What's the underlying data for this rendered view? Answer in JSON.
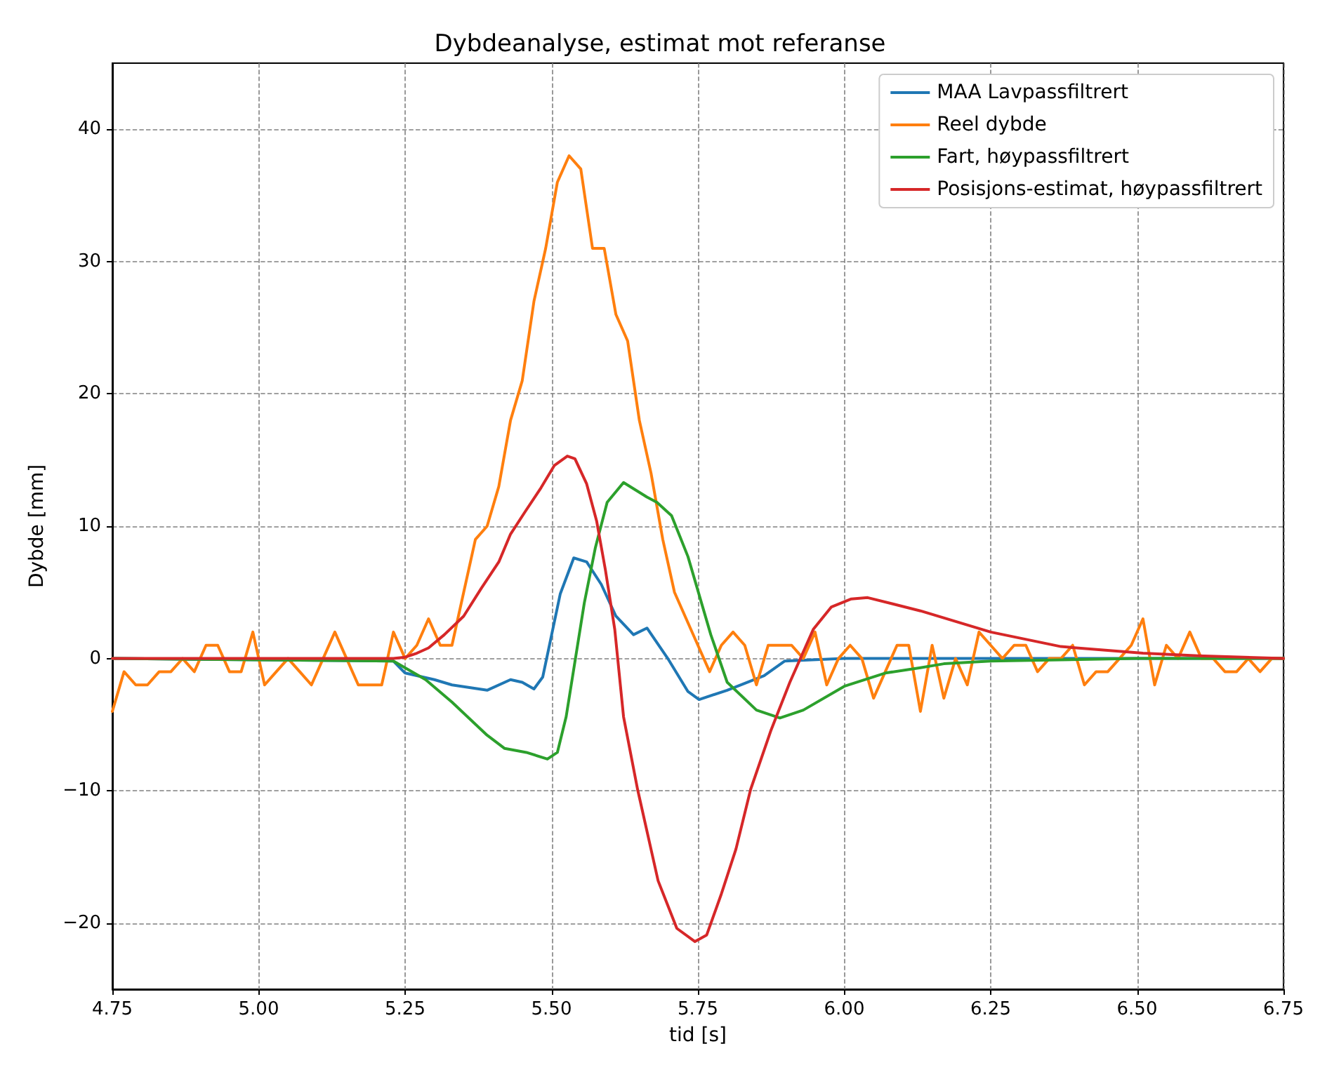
{
  "chart_data": {
    "type": "line",
    "title": "Dybdeanalyse, estimat mot referanse",
    "xlabel": "tid [s]",
    "ylabel": "Dybde [mm]",
    "xlim": [
      4.75,
      6.75
    ],
    "xticks": [
      4.75,
      {
        "value": 5,
        "label": "5.00"
      },
      5.25,
      {
        "value": 5.5,
        "label": "5.50"
      },
      5.75,
      {
        "value": 6,
        "label": "6.00"
      },
      6.25,
      {
        "value": 6.5,
        "label": "6.50"
      },
      6.75
    ],
    "ylim": [
      -25,
      45
    ],
    "yticks": [
      {
        "value": -20,
        "label": "−20"
      },
      {
        "value": -10,
        "label": "−10"
      },
      0,
      10,
      20,
      30,
      40
    ],
    "grid": true,
    "legend": "top right",
    "line_style": "solid",
    "series": [
      {
        "name": "MAA Lavpassfiltrert",
        "color": "#1f77b4",
        "x": [
          4.75,
          5.23,
          5.25,
          5.3,
          5.33,
          5.39,
          5.43,
          5.45,
          5.47,
          5.485,
          5.515,
          5.538,
          5.56,
          5.585,
          5.61,
          5.64,
          5.663,
          5.7,
          5.733,
          5.752,
          5.8,
          5.863,
          5.898,
          5.945,
          6.0,
          6.75
        ],
        "values": [
          0,
          -0.2,
          -1.1,
          -1.6,
          -2.0,
          -2.4,
          -1.6,
          -1.8,
          -2.3,
          -1.4,
          4.9,
          7.6,
          7.3,
          5.6,
          3.2,
          1.8,
          2.3,
          -0.1,
          -2.5,
          -3.1,
          -2.4,
          -1.3,
          -0.2,
          -0.1,
          0,
          0
        ]
      },
      {
        "name": "Reel dybde",
        "color": "#ff7f0e",
        "x": [
          4.75,
          4.77,
          4.79,
          4.81,
          4.83,
          4.85,
          4.87,
          4.89,
          4.91,
          4.93,
          4.95,
          4.97,
          4.99,
          5.01,
          5.03,
          5.05,
          5.07,
          5.09,
          5.11,
          5.13,
          5.15,
          5.17,
          5.19,
          5.21,
          5.23,
          5.25,
          5.27,
          5.29,
          5.31,
          5.33,
          5.35,
          5.37,
          5.39,
          5.41,
          5.43,
          5.45,
          5.47,
          5.49,
          5.51,
          5.53,
          5.55,
          5.57,
          5.59,
          5.61,
          5.63,
          5.65,
          5.67,
          5.69,
          5.71,
          5.73,
          5.75,
          5.77,
          5.79,
          5.81,
          5.83,
          5.85,
          5.87,
          5.89,
          5.91,
          5.93,
          5.95,
          5.97,
          5.99,
          6.01,
          6.03,
          6.05,
          6.07,
          6.09,
          6.11,
          6.13,
          6.15,
          6.17,
          6.19,
          6.21,
          6.23,
          6.25,
          6.27,
          6.29,
          6.31,
          6.33,
          6.35,
          6.37,
          6.39,
          6.41,
          6.43,
          6.45,
          6.47,
          6.49,
          6.51,
          6.53,
          6.55,
          6.57,
          6.59,
          6.61,
          6.63,
          6.65,
          6.67,
          6.69,
          6.71,
          6.73,
          6.75
        ],
        "values": [
          -4,
          -1,
          -2,
          -2,
          -1,
          -1,
          0,
          -1,
          1,
          1,
          -1,
          -1,
          2,
          -2,
          -1,
          0,
          -1,
          -2,
          0,
          2,
          0,
          -2,
          -2,
          -2,
          2,
          0,
          1,
          3,
          1,
          1,
          5,
          9,
          10,
          13,
          18,
          21,
          27,
          31,
          36,
          38,
          37,
          31,
          31,
          26,
          24,
          18,
          14,
          9,
          5,
          3,
          1,
          -1,
          1,
          2,
          1,
          -2,
          1,
          1,
          1,
          0,
          2,
          -2,
          0,
          1,
          0,
          -3,
          -1,
          1,
          1,
          -4,
          1,
          -3,
          0,
          -2,
          2,
          1,
          0,
          1,
          1,
          -1,
          0,
          0,
          1,
          -2,
          -1,
          -1,
          0,
          1,
          3,
          -2,
          1,
          0,
          2,
          0,
          0,
          -1,
          -1,
          0,
          -1,
          0,
          0
        ]
      },
      {
        "name": "Fart, høypassfiltrert",
        "color": "#2ca02c",
        "x": [
          4.75,
          5.23,
          5.285,
          5.33,
          5.39,
          5.42,
          5.457,
          5.493,
          5.51,
          5.525,
          5.556,
          5.575,
          5.595,
          5.623,
          5.663,
          5.68,
          5.705,
          5.733,
          5.772,
          5.8,
          5.85,
          5.89,
          5.93,
          6.0,
          6.07,
          6.13,
          6.17,
          6.25,
          6.37,
          6.5,
          6.75
        ],
        "values": [
          0,
          -0.2,
          -1.6,
          -3.3,
          -5.8,
          -6.8,
          -7.1,
          -7.6,
          -7.1,
          -4.4,
          4.2,
          8.4,
          11.8,
          13.3,
          12.2,
          11.8,
          10.8,
          7.7,
          1.8,
          -1.8,
          -3.9,
          -4.5,
          -3.9,
          -2.1,
          -1.1,
          -0.7,
          -0.4,
          -0.2,
          -0.1,
          0,
          0
        ]
      },
      {
        "name": "Posisjons-estimat, høypassfiltrert",
        "color": "#d62728",
        "x": [
          4.75,
          5.23,
          5.25,
          5.27,
          5.29,
          5.317,
          5.35,
          5.38,
          5.41,
          5.43,
          5.455,
          5.482,
          5.505,
          5.527,
          5.54,
          5.56,
          5.577,
          5.592,
          5.608,
          5.623,
          5.647,
          5.682,
          5.714,
          5.745,
          5.765,
          5.79,
          5.815,
          5.84,
          5.875,
          5.907,
          5.947,
          5.978,
          6.012,
          6.04,
          6.13,
          6.25,
          6.37,
          6.51,
          6.605,
          6.75
        ],
        "values": [
          0,
          0,
          0.1,
          0.4,
          0.8,
          1.8,
          3.2,
          5.3,
          7.3,
          9.4,
          11.1,
          12.9,
          14.6,
          15.3,
          15.1,
          13.2,
          10.4,
          6.7,
          2.2,
          -4.4,
          -9.9,
          -16.8,
          -20.4,
          -21.4,
          -20.9,
          -17.8,
          -14.4,
          -9.9,
          -5.4,
          -1.8,
          2.2,
          3.9,
          4.5,
          4.6,
          3.6,
          2.0,
          0.9,
          0.4,
          0.2,
          0
        ]
      }
    ]
  }
}
